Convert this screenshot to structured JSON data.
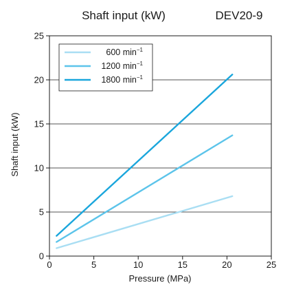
{
  "chart_data": {
    "type": "line",
    "title": "Shaft input (kW)",
    "model": "DEV20-9",
    "xlabel": "Pressure (MPa)",
    "ylabel": "Shaft input (kW)",
    "xlim": [
      0,
      25
    ],
    "ylim": [
      0,
      25
    ],
    "xticks": [
      0,
      5,
      10,
      15,
      20,
      25
    ],
    "yticks": [
      0,
      5,
      10,
      15,
      20,
      25
    ],
    "grid": "horizontal",
    "legend_position": "top-left",
    "series": [
      {
        "name": "600 min",
        "sup": "−1",
        "color": "#a9def3",
        "x": [
          0.8,
          20.6
        ],
        "y": [
          0.9,
          6.8
        ]
      },
      {
        "name": "1200 min",
        "sup": "−1",
        "color": "#5cc4ea",
        "x": [
          0.8,
          20.6
        ],
        "y": [
          1.6,
          13.7
        ]
      },
      {
        "name": "1800 min",
        "sup": "−1",
        "color": "#1aa6dc",
        "x": [
          0.8,
          20.6
        ],
        "y": [
          2.3,
          20.6
        ]
      }
    ]
  }
}
